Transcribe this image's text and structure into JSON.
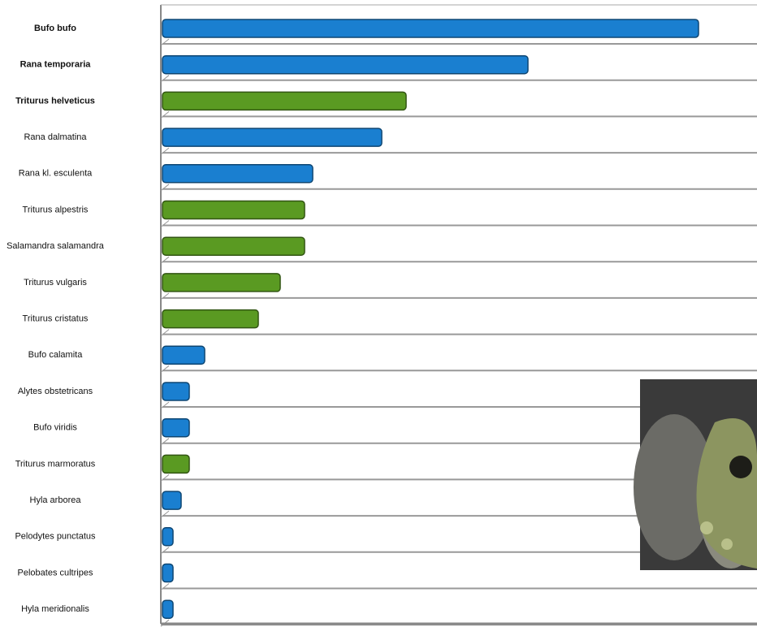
{
  "chart_data": {
    "type": "bar",
    "orientation": "horizontal",
    "categories": [
      "Bufo bufo",
      "Rana temporaria",
      "Triturus helveticus",
      "Rana dalmatina",
      "Rana kl. esculenta",
      "Triturus alpestris",
      "Salamandra salamandra",
      "Triturus vulgaris",
      "Triturus cristatus",
      "Bufo calamita",
      "Alytes obstetricans",
      "Bufo viridis",
      "Triturus marmoratus",
      "Hyla arborea",
      "Pelodytes punctatus",
      "Pelobates cultripes",
      "Hyla meridionalis"
    ],
    "values": [
      660,
      450,
      300,
      270,
      185,
      175,
      175,
      145,
      118,
      52,
      33,
      33,
      33,
      23,
      13,
      13,
      13
    ],
    "colors": [
      "#1a7fd0",
      "#1a7fd0",
      "#5a9a22",
      "#1a7fd0",
      "#1a7fd0",
      "#5a9a22",
      "#5a9a22",
      "#5a9a22",
      "#5a9a22",
      "#1a7fd0",
      "#1a7fd0",
      "#1a7fd0",
      "#5a9a22",
      "#1a7fd0",
      "#1a7fd0",
      "#1a7fd0",
      "#1a7fd0"
    ],
    "xlim": [
      0,
      735
    ],
    "grid": true
  }
}
